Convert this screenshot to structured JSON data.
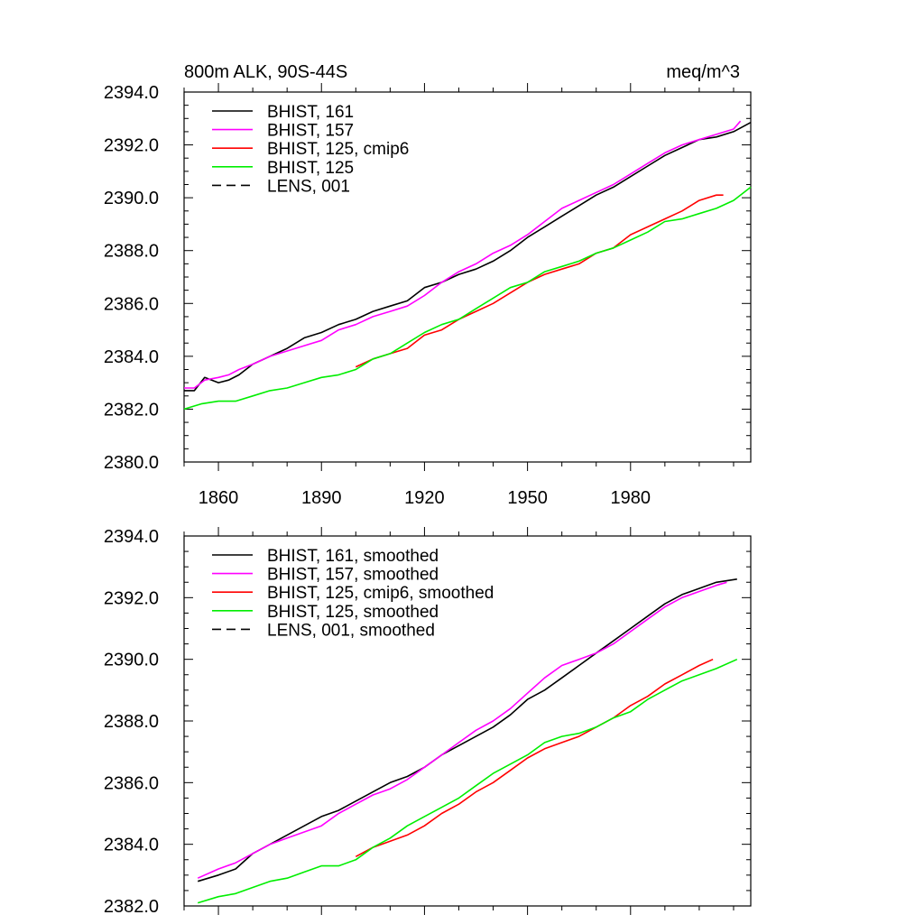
{
  "chart_data": [
    {
      "type": "line",
      "title_left": "800m ALK, 90S-44S",
      "title_right": "meq/m^3",
      "xlabel": "",
      "ylabel": "",
      "xlim": [
        1850,
        2015
      ],
      "ylim": [
        2380,
        2394
      ],
      "xticks": [
        1860,
        1890,
        1920,
        1950,
        1980
      ],
      "xtick_labels": [
        "1860",
        "1890",
        "1920",
        "1950",
        "1980"
      ],
      "yticks": [
        2380,
        2382,
        2384,
        2386,
        2388,
        2390,
        2392,
        2394
      ],
      "ytick_labels": [
        "2380.0",
        "2382.0",
        "2384.0",
        "2386.0",
        "2388.0",
        "2390.0",
        "2392.0",
        "2394.0"
      ],
      "legend": "top-left",
      "series": [
        {
          "name": "BHIST, 161",
          "color": "#000000",
          "dash": "solid",
          "x": [
            1850,
            1853,
            1856,
            1860,
            1863,
            1866,
            1870,
            1875,
            1880,
            1885,
            1890,
            1895,
            1900,
            1905,
            1910,
            1915,
            1920,
            1925,
            1930,
            1935,
            1940,
            1945,
            1950,
            1955,
            1960,
            1965,
            1970,
            1975,
            1980,
            1985,
            1990,
            1995,
            2000,
            2005,
            2010,
            2015
          ],
          "values": [
            2382.7,
            2382.7,
            2383.2,
            2383.0,
            2383.1,
            2383.3,
            2383.7,
            2384.0,
            2384.3,
            2384.7,
            2384.9,
            2385.2,
            2385.4,
            2385.7,
            2385.9,
            2386.1,
            2386.6,
            2386.8,
            2387.1,
            2387.3,
            2387.6,
            2388.0,
            2388.5,
            2388.9,
            2389.3,
            2389.7,
            2390.1,
            2390.4,
            2390.8,
            2391.2,
            2391.6,
            2391.9,
            2392.2,
            2392.3,
            2392.5,
            2392.85
          ]
        },
        {
          "name": "BHIST, 157",
          "color": "#ff00ff",
          "dash": "solid",
          "x": [
            1850,
            1853,
            1856,
            1860,
            1863,
            1866,
            1870,
            1875,
            1880,
            1885,
            1890,
            1895,
            1900,
            1905,
            1910,
            1915,
            1920,
            1925,
            1930,
            1935,
            1940,
            1945,
            1950,
            1955,
            1960,
            1965,
            1970,
            1975,
            1980,
            1985,
            1990,
            1995,
            2000,
            2005,
            2010,
            2012
          ],
          "values": [
            2382.8,
            2382.8,
            2383.1,
            2383.2,
            2383.3,
            2383.5,
            2383.7,
            2384.0,
            2384.2,
            2384.4,
            2384.6,
            2385.0,
            2385.2,
            2385.5,
            2385.7,
            2385.9,
            2386.3,
            2386.8,
            2387.2,
            2387.5,
            2387.9,
            2388.2,
            2388.6,
            2389.1,
            2389.6,
            2389.9,
            2390.2,
            2390.5,
            2390.9,
            2391.3,
            2391.7,
            2392.0,
            2392.2,
            2392.4,
            2392.6,
            2392.9
          ]
        },
        {
          "name": "BHIST, 125, cmip6",
          "color": "#ff0000",
          "dash": "solid",
          "x": [
            1900,
            1905,
            1910,
            1915,
            1920,
            1925,
            1930,
            1935,
            1940,
            1945,
            1950,
            1955,
            1960,
            1965,
            1970,
            1975,
            1980,
            1985,
            1990,
            1995,
            2000,
            2005,
            2007
          ],
          "values": [
            2383.6,
            2383.9,
            2384.1,
            2384.3,
            2384.8,
            2385.0,
            2385.4,
            2385.7,
            2386.0,
            2386.4,
            2386.8,
            2387.1,
            2387.3,
            2387.5,
            2387.9,
            2388.1,
            2388.6,
            2388.9,
            2389.2,
            2389.5,
            2389.9,
            2390.1,
            2390.1
          ]
        },
        {
          "name": "BHIST, 125",
          "color": "#00ee00",
          "dash": "solid",
          "x": [
            1850,
            1855,
            1860,
            1865,
            1870,
            1875,
            1880,
            1885,
            1890,
            1895,
            1900,
            1905,
            1910,
            1915,
            1920,
            1925,
            1930,
            1935,
            1940,
            1945,
            1950,
            1955,
            1960,
            1965,
            1970,
            1975,
            1980,
            1985,
            1990,
            1995,
            2000,
            2005,
            2010,
            2015
          ],
          "values": [
            2382.0,
            2382.2,
            2382.3,
            2382.3,
            2382.5,
            2382.7,
            2382.8,
            2383.0,
            2383.2,
            2383.3,
            2383.5,
            2383.9,
            2384.1,
            2384.5,
            2384.9,
            2385.2,
            2385.4,
            2385.8,
            2386.2,
            2386.6,
            2386.8,
            2387.2,
            2387.4,
            2387.6,
            2387.9,
            2388.1,
            2388.4,
            2388.7,
            2389.1,
            2389.2,
            2389.4,
            2389.6,
            2389.9,
            2390.4
          ]
        },
        {
          "name": "LENS, 001",
          "color": "#000000",
          "dash": "dashed",
          "x": [],
          "values": []
        }
      ]
    },
    {
      "type": "line",
      "title_left": "",
      "title_right": "",
      "xlabel": "",
      "ylabel": "",
      "xlim": [
        1850,
        2015
      ],
      "ylim": [
        2382,
        2394
      ],
      "xticks": [
        1860,
        1890,
        1920,
        1950,
        1980
      ],
      "xtick_labels": [],
      "yticks": [
        2382,
        2384,
        2386,
        2388,
        2390,
        2392,
        2394
      ],
      "ytick_labels": [
        "2382.0",
        "2384.0",
        "2386.0",
        "2388.0",
        "2390.0",
        "2392.0",
        "2394.0"
      ],
      "legend": "top-left",
      "series": [
        {
          "name": "BHIST, 161, smoothed",
          "color": "#000000",
          "dash": "solid",
          "x": [
            1854,
            1860,
            1865,
            1870,
            1875,
            1880,
            1885,
            1890,
            1895,
            1900,
            1905,
            1910,
            1915,
            1920,
            1925,
            1930,
            1935,
            1940,
            1945,
            1950,
            1955,
            1960,
            1965,
            1970,
            1975,
            1980,
            1985,
            1990,
            1995,
            2000,
            2005,
            2011
          ],
          "values": [
            2382.8,
            2383.0,
            2383.2,
            2383.7,
            2384.0,
            2384.3,
            2384.6,
            2384.9,
            2385.1,
            2385.4,
            2385.7,
            2386.0,
            2386.2,
            2386.5,
            2386.9,
            2387.2,
            2387.5,
            2387.8,
            2388.2,
            2388.7,
            2389.0,
            2389.4,
            2389.8,
            2390.2,
            2390.6,
            2391.0,
            2391.4,
            2391.8,
            2392.1,
            2392.3,
            2392.5,
            2392.6
          ]
        },
        {
          "name": "BHIST, 157, smoothed",
          "color": "#ff00ff",
          "dash": "solid",
          "x": [
            1854,
            1860,
            1865,
            1870,
            1875,
            1880,
            1885,
            1890,
            1895,
            1900,
            1905,
            1910,
            1915,
            1920,
            1925,
            1930,
            1935,
            1940,
            1945,
            1950,
            1955,
            1960,
            1965,
            1970,
            1975,
            1980,
            1985,
            1990,
            1995,
            2000,
            2005,
            2008
          ],
          "values": [
            2382.9,
            2383.2,
            2383.4,
            2383.7,
            2384.0,
            2384.2,
            2384.4,
            2384.6,
            2385.0,
            2385.3,
            2385.6,
            2385.8,
            2386.1,
            2386.5,
            2386.9,
            2387.3,
            2387.7,
            2388.0,
            2388.4,
            2388.9,
            2389.4,
            2389.8,
            2390.0,
            2390.2,
            2390.5,
            2390.9,
            2391.3,
            2391.7,
            2392.0,
            2392.2,
            2392.4,
            2392.5
          ]
        },
        {
          "name": "BHIST, 125, cmip6, smoothed",
          "color": "#ff0000",
          "dash": "solid",
          "x": [
            1900,
            1905,
            1910,
            1915,
            1920,
            1925,
            1930,
            1935,
            1940,
            1945,
            1950,
            1955,
            1960,
            1965,
            1970,
            1975,
            1980,
            1985,
            1990,
            1995,
            2000,
            2004
          ],
          "values": [
            2383.6,
            2383.9,
            2384.1,
            2384.3,
            2384.6,
            2385.0,
            2385.3,
            2385.7,
            2386.0,
            2386.4,
            2386.8,
            2387.1,
            2387.3,
            2387.5,
            2387.8,
            2388.1,
            2388.5,
            2388.8,
            2389.2,
            2389.5,
            2389.8,
            2390.0
          ]
        },
        {
          "name": "BHIST, 125, smoothed",
          "color": "#00ee00",
          "dash": "solid",
          "x": [
            1854,
            1860,
            1865,
            1870,
            1875,
            1880,
            1885,
            1890,
            1895,
            1900,
            1905,
            1910,
            1915,
            1920,
            1925,
            1930,
            1935,
            1940,
            1945,
            1950,
            1955,
            1960,
            1965,
            1970,
            1975,
            1980,
            1985,
            1990,
            1995,
            2000,
            2005,
            2011
          ],
          "values": [
            2382.1,
            2382.3,
            2382.4,
            2382.6,
            2382.8,
            2382.9,
            2383.1,
            2383.3,
            2383.3,
            2383.5,
            2383.9,
            2384.2,
            2384.6,
            2384.9,
            2385.2,
            2385.5,
            2385.9,
            2386.3,
            2386.6,
            2386.9,
            2387.3,
            2387.5,
            2387.6,
            2387.8,
            2388.1,
            2388.3,
            2388.7,
            2389.0,
            2389.3,
            2389.5,
            2389.7,
            2390.0
          ]
        },
        {
          "name": "LENS, 001, smoothed",
          "color": "#000000",
          "dash": "dashed",
          "x": [],
          "values": []
        }
      ]
    }
  ]
}
